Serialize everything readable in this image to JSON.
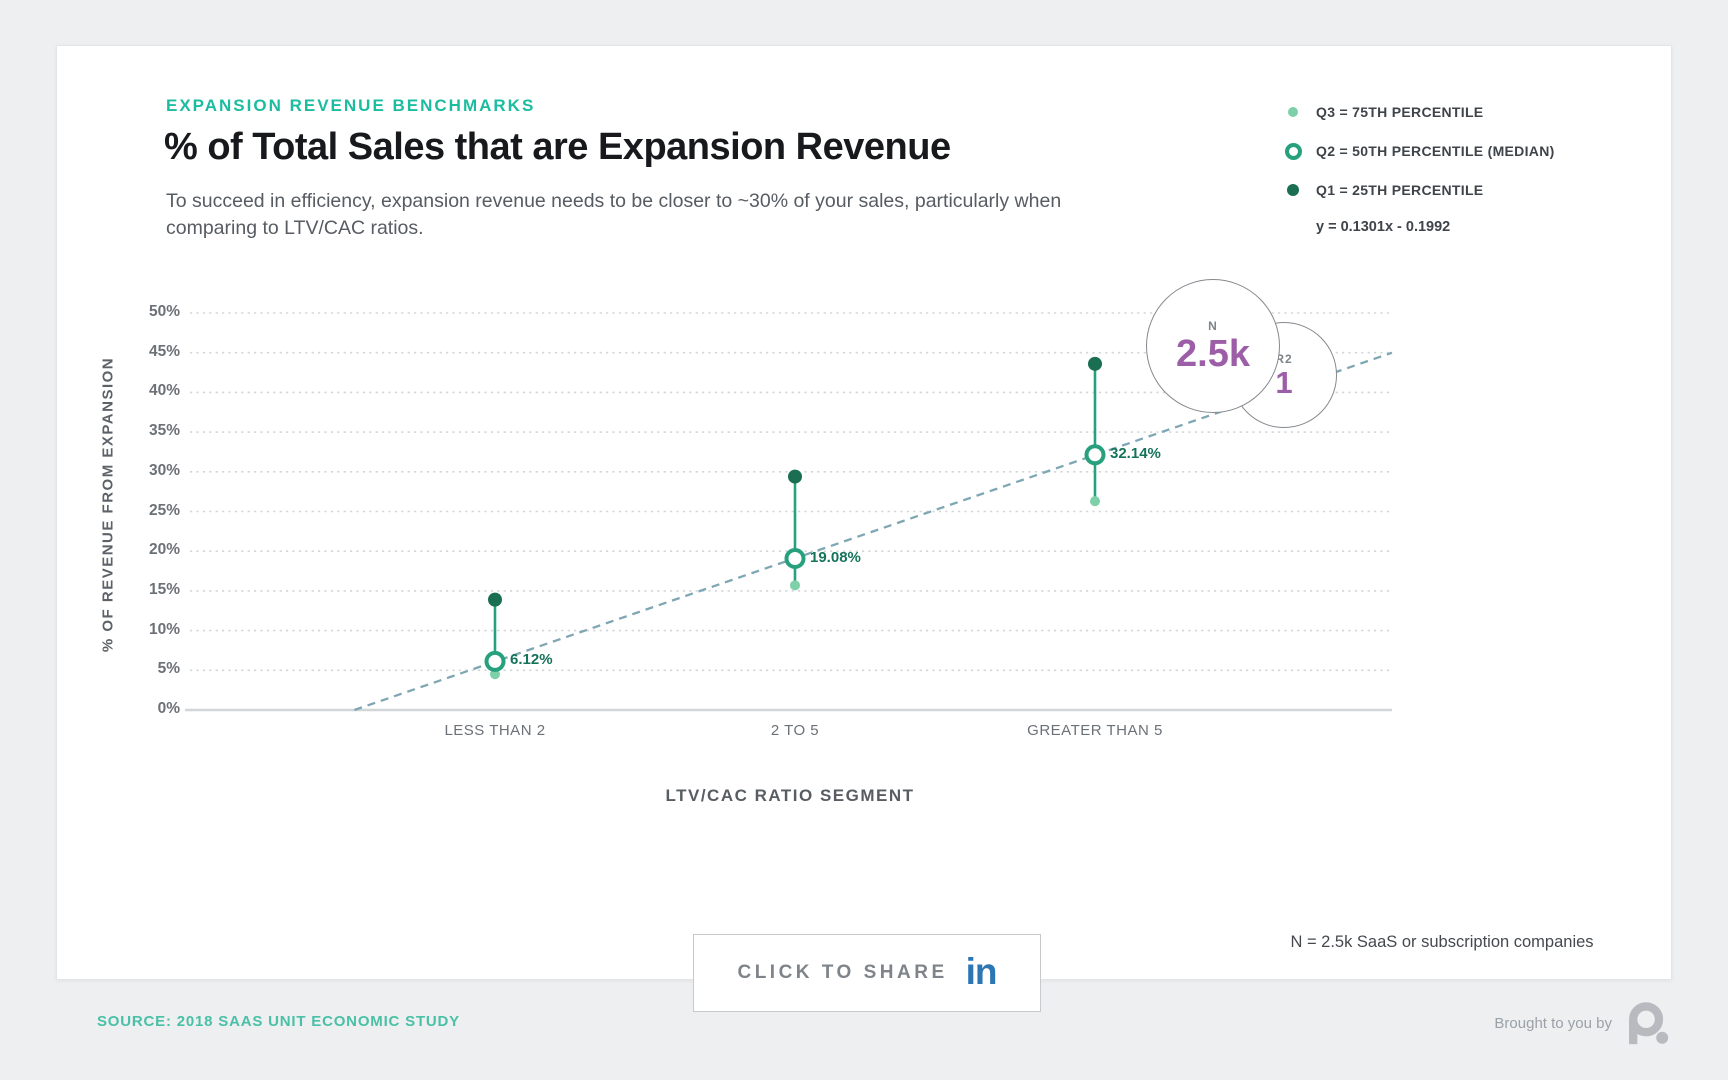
{
  "header": {
    "eyebrow": "EXPANSION REVENUE BENCHMARKS",
    "title": "% of Total Sales that are Expansion Revenue",
    "subtitle": "To succeed in efficiency, expansion revenue needs to be closer to ~30% of your sales, particularly when comparing to LTV/CAC ratios."
  },
  "legend": {
    "items": [
      {
        "label": "Q3 = 75TH PERCENTILE",
        "marker": "dot-small",
        "color": "#7ed0a9"
      },
      {
        "label": "Q2 = 50TH PERCENTILE (MEDIAN)",
        "marker": "ring",
        "color": "#27a17d"
      },
      {
        "label": "Q1 = 25TH PERCENTILE",
        "marker": "dot",
        "color": "#1a6f53"
      }
    ],
    "equation": "y = 0.1301x - 0.1992"
  },
  "chart_data": {
    "type": "scatter",
    "subtype": "dot-whisker percentile chart",
    "title": "% of Total Sales that are Expansion Revenue",
    "xlabel": "LTV/CAC RATIO SEGMENT",
    "ylabel": "% OF REVENUE FROM EXPANSION",
    "categories": [
      "LESS THAN 2",
      "2 TO 5",
      "GREATER THAN 5"
    ],
    "ylim": [
      0,
      50
    ],
    "grid": "horizontal dotted",
    "yticks": [
      {
        "value": 0,
        "label": "0%"
      },
      {
        "value": 5,
        "label": "5%"
      },
      {
        "value": 10,
        "label": "10%"
      },
      {
        "value": 15,
        "label": "15%"
      },
      {
        "value": 20,
        "label": "20%"
      },
      {
        "value": 25,
        "label": "25%"
      },
      {
        "value": 30,
        "label": "30%"
      },
      {
        "value": 35,
        "label": "35%"
      },
      {
        "value": 40,
        "label": "40%"
      },
      {
        "value": 45,
        "label": "45%"
      },
      {
        "value": 50,
        "label": "50%"
      }
    ],
    "series": [
      {
        "name": "upper whisker dot",
        "marker": "dot",
        "color": "#1a6f53",
        "values": [
          13.9,
          29.4,
          43.6
        ]
      },
      {
        "name": "median ring",
        "marker": "ring",
        "color": "#27a17d",
        "values": [
          6.12,
          19.08,
          32.14
        ],
        "data_labels": [
          "6.12%",
          "19.08%",
          "32.14%"
        ]
      },
      {
        "name": "lower whisker dot",
        "marker": "dot",
        "color": "#7ed0a9",
        "values": [
          4.5,
          15.7,
          26.3
        ]
      }
    ],
    "whisker_color": "#27a17d",
    "trendline": {
      "equation": "y = 0.1301x - 0.1992",
      "slope": 0.1301,
      "intercept": -0.1992,
      "category_x": [
        2,
        3,
        4
      ],
      "style": "dashed",
      "color": "#7fa7b3"
    },
    "annotations": [
      {
        "id": "n",
        "label": "N",
        "value": "2.5k"
      },
      {
        "id": "r2",
        "label": "R2",
        "value": "1"
      }
    ]
  },
  "share": {
    "label": "CLICK TO SHARE",
    "icon": "in"
  },
  "note": "N = 2.5k SaaS or subscription companies",
  "footer": {
    "source": "SOURCE: 2018 SAAS UNIT ECONOMIC STUDY",
    "brought_by": "Brought to you by"
  },
  "colors": {
    "accent_teal": "#1cbca0",
    "badge_purple": "#9c5fa7",
    "linkedin_blue": "#2d76b4",
    "gridline": "#d3d6d8"
  }
}
